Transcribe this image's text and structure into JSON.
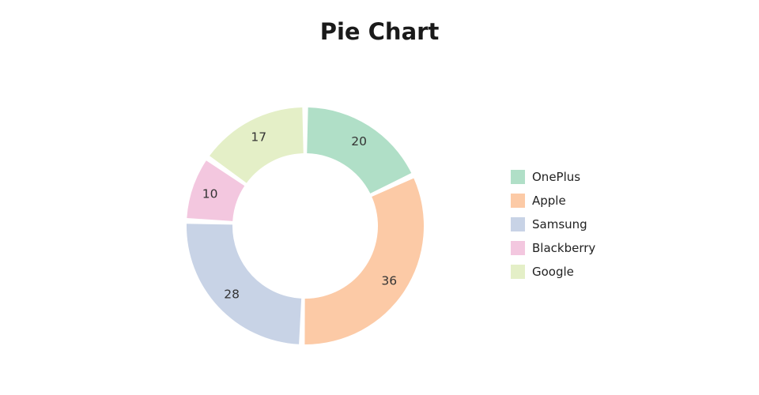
{
  "page": {
    "background": "#ffffff"
  },
  "title": {
    "text": "Pie Chart",
    "color": "#1a1a1a"
  },
  "chart_data": {
    "type": "pie",
    "subtype": "donut",
    "title": "Pie Chart",
    "start_angle_deg": 0,
    "direction": "clockwise",
    "slice_gaps": true,
    "categories": [
      "OnePlus",
      "Apple",
      "Samsung",
      "Blackberry",
      "Google"
    ],
    "values": [
      20,
      36,
      28,
      10,
      17
    ],
    "total": 111,
    "colors": [
      "#b0dfc7",
      "#fccaa6",
      "#c8d3e6",
      "#f3c7df",
      "#e4efc7"
    ],
    "value_labels": [
      "20",
      "36",
      "28",
      "10",
      "17"
    ],
    "value_label_color": "#333333",
    "legend_position": "right",
    "legend_text_color": "#222222"
  }
}
